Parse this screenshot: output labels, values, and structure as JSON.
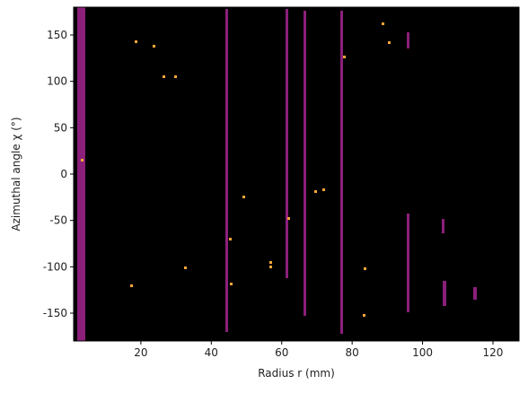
{
  "chart_data": {
    "type": "image",
    "xlabel": "Radius r (mm)",
    "ylabel": "Azimuthal angle χ (°)",
    "xlim": [
      0.9,
      127.4
    ],
    "xticks": [
      20,
      40,
      60,
      80,
      100,
      120
    ],
    "ylim": [
      -180,
      180
    ],
    "yticks": [
      -150,
      -100,
      -50,
      0,
      50,
      100,
      150
    ],
    "background": "#000000"
  }
}
